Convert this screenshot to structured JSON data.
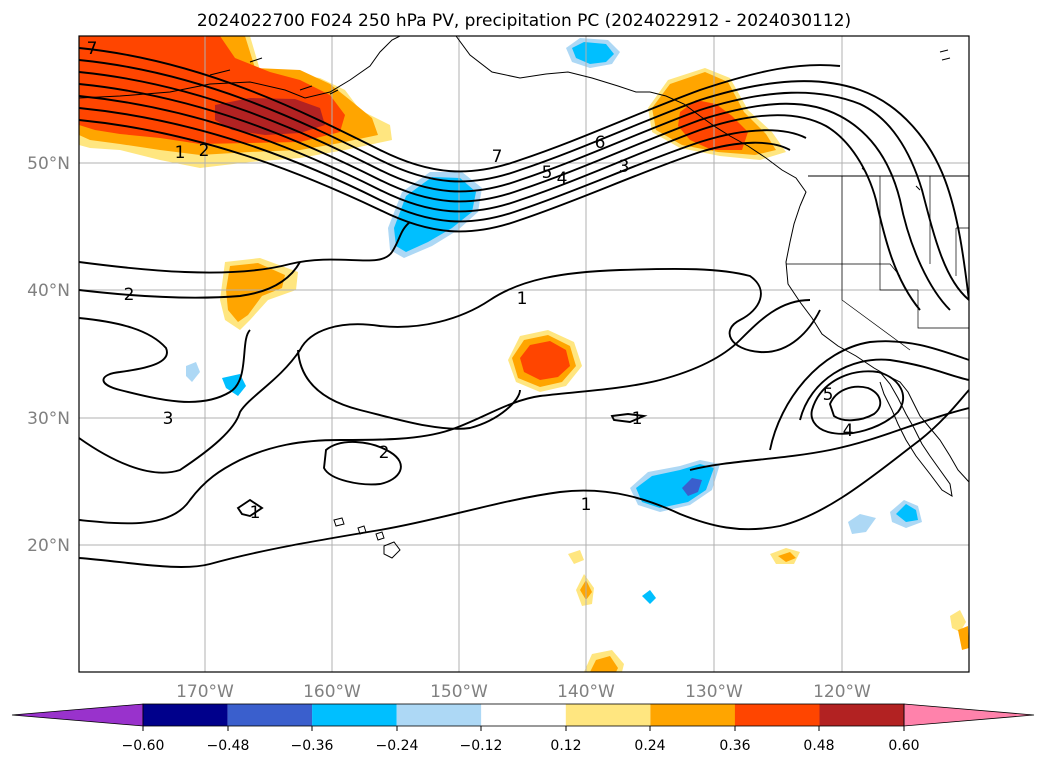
{
  "title": "2024022700 F024 250 hPa PV, precipitation PC (2024022912 - 2024030112)",
  "map": {
    "lat_labels": [
      "50°N",
      "40°N",
      "30°N",
      "20°N"
    ],
    "lon_labels": [
      "170°W",
      "160°W",
      "150°W",
      "140°W",
      "130°W",
      "120°W"
    ],
    "contour_labels": [
      "7",
      "1",
      "2",
      "7",
      "6",
      "5",
      "4",
      "3",
      "2",
      "1",
      "3",
      "2",
      "1",
      "1",
      "1",
      "5",
      "4"
    ]
  },
  "colorbar": {
    "tick_labels": [
      "−0.60",
      "−0.48",
      "−0.36",
      "−0.24",
      "−0.12",
      "0.12",
      "0.24",
      "0.36",
      "0.48",
      "0.60"
    ],
    "colors": [
      "#9932cc",
      "#00008b",
      "#3a5fcd",
      "#00bfff",
      "#add8f5",
      "#ffffff",
      "#ffe680",
      "#ffa500",
      "#ff4500",
      "#b22222",
      "#ff82ab"
    ]
  },
  "colors": {
    "contour": "#000000",
    "grid": "#b0b0b0",
    "axis_label": "#808080"
  }
}
